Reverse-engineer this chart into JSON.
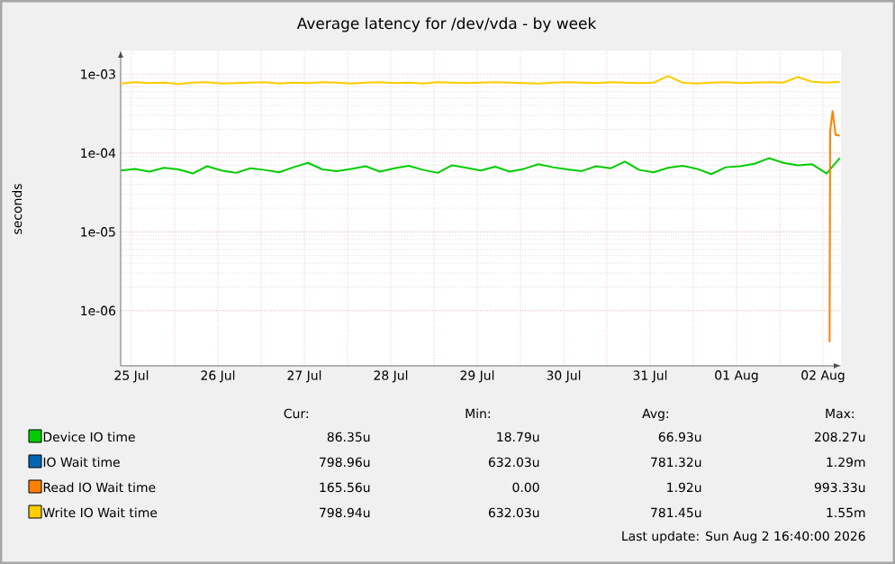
{
  "chart_data": {
    "type": "line",
    "title": "Average latency for /dev/vda - by week",
    "ylabel": "seconds",
    "log": "y",
    "grid": true,
    "legend": "bottom",
    "marker": "none",
    "xlim": [
      "2026-07-25T09:00",
      "2026-08-02T17:00"
    ],
    "ylim": [
      2e-07,
      0.002
    ],
    "yticks": [
      {
        "value": 1e-06,
        "label": "1e-06"
      },
      {
        "value": 1e-05,
        "label": "1e-05"
      },
      {
        "value": 0.0001,
        "label": "1e-04"
      },
      {
        "value": 0.001,
        "label": "1e-03"
      }
    ],
    "xticks": [
      {
        "value": "2026-07-25T12:00",
        "label": "25 Jul"
      },
      {
        "value": "2026-07-26T00:00",
        "label": null
      },
      {
        "value": "2026-07-26T12:00",
        "label": "26 Jul"
      },
      {
        "value": "2026-07-27T00:00",
        "label": null
      },
      {
        "value": "2026-07-27T12:00",
        "label": "27 Jul"
      },
      {
        "value": "2026-07-28T00:00",
        "label": null
      },
      {
        "value": "2026-07-28T12:00",
        "label": "28 Jul"
      },
      {
        "value": "2026-07-29T00:00",
        "label": null
      },
      {
        "value": "2026-07-29T12:00",
        "label": "29 Jul"
      },
      {
        "value": "2026-07-30T00:00",
        "label": null
      },
      {
        "value": "2026-07-30T12:00",
        "label": "30 Jul"
      },
      {
        "value": "2026-07-31T00:00",
        "label": null
      },
      {
        "value": "2026-07-31T12:00",
        "label": "31 Jul"
      },
      {
        "value": "2026-08-01T00:00",
        "label": null
      },
      {
        "value": "2026-08-01T12:00",
        "label": "01 Aug"
      },
      {
        "value": "2026-08-02T00:00",
        "label": null
      },
      {
        "value": "2026-08-02T12:00",
        "label": "02 Aug"
      }
    ],
    "x": [
      "2026-07-25T09:00",
      "2026-07-25T13:00",
      "2026-07-25T17:00",
      "2026-07-25T21:00",
      "2026-07-26T01:00",
      "2026-07-26T05:00",
      "2026-07-26T09:00",
      "2026-07-26T13:00",
      "2026-07-26T17:00",
      "2026-07-26T21:00",
      "2026-07-27T01:00",
      "2026-07-27T05:00",
      "2026-07-27T09:00",
      "2026-07-27T13:00",
      "2026-07-27T17:00",
      "2026-07-27T21:00",
      "2026-07-28T01:00",
      "2026-07-28T05:00",
      "2026-07-28T09:00",
      "2026-07-28T13:00",
      "2026-07-28T17:00",
      "2026-07-28T21:00",
      "2026-07-29T01:00",
      "2026-07-29T05:00",
      "2026-07-29T09:00",
      "2026-07-29T13:00",
      "2026-07-29T17:00",
      "2026-07-29T21:00",
      "2026-07-30T01:00",
      "2026-07-30T05:00",
      "2026-07-30T09:00",
      "2026-07-30T13:00",
      "2026-07-30T17:00",
      "2026-07-30T21:00",
      "2026-07-31T01:00",
      "2026-07-31T05:00",
      "2026-07-31T09:00",
      "2026-07-31T13:00",
      "2026-07-31T17:00",
      "2026-07-31T21:00",
      "2026-08-01T01:00",
      "2026-08-01T05:00",
      "2026-08-01T09:00",
      "2026-08-01T13:00",
      "2026-08-01T17:00",
      "2026-08-01T21:00",
      "2026-08-02T01:00",
      "2026-08-02T05:00",
      "2026-08-02T09:00",
      "2026-08-02T13:00",
      "2026-08-02T16:40"
    ],
    "series": [
      {
        "name": "Device IO time",
        "color": "#00cc00",
        "values": [
          6e-05,
          6.3e-05,
          5.8e-05,
          6.5e-05,
          6.2e-05,
          5.5e-05,
          6.8e-05,
          6e-05,
          5.6e-05,
          6.4e-05,
          6.1e-05,
          5.7e-05,
          6.6e-05,
          7.5e-05,
          6.2e-05,
          5.9e-05,
          6.3e-05,
          6.8e-05,
          5.8e-05,
          6.4e-05,
          6.9e-05,
          6.1e-05,
          5.6e-05,
          7e-05,
          6.5e-05,
          6e-05,
          6.7e-05,
          5.8e-05,
          6.3e-05,
          7.2e-05,
          6.6e-05,
          6.2e-05,
          5.9e-05,
          6.8e-05,
          6.4e-05,
          7.8e-05,
          6.1e-05,
          5.7e-05,
          6.5e-05,
          6.9e-05,
          6.3e-05,
          5.4e-05,
          6.6e-05,
          6.8e-05,
          7.3e-05,
          8.6e-05,
          7.5e-05,
          7e-05,
          7.2e-05,
          5.5e-05,
          8.635e-05
        ]
      },
      {
        "name": "IO Wait time",
        "color": "#0066b3",
        "values": [
          null,
          null,
          null,
          null,
          null,
          null,
          null,
          null,
          null,
          null,
          null,
          null,
          null,
          null,
          null,
          null,
          null,
          null,
          null,
          null,
          null,
          null,
          null,
          null,
          null,
          null,
          null,
          null,
          null,
          null,
          null,
          null,
          null,
          null,
          null,
          null,
          null,
          null,
          null,
          null,
          null,
          null,
          null,
          null,
          null,
          null,
          null,
          null,
          null,
          null,
          null
        ]
      },
      {
        "name": "Read IO Wait time",
        "color": "#ff8000",
        "x": [
          "2026-08-02T13:50",
          "2026-08-02T14:00",
          "2026-08-02T14:40",
          "2026-08-02T15:30",
          "2026-08-02T16:40"
        ],
        "values": [
          4e-07,
          0.00019,
          0.00034,
          0.00017,
          0.000166
        ]
      },
      {
        "name": "Write IO Wait time",
        "color": "#ffcc00",
        "values": [
          0.00076,
          0.00079,
          0.00077,
          0.00078,
          0.00075,
          0.00078,
          0.00079,
          0.00076,
          0.00077,
          0.00078,
          0.00079,
          0.00076,
          0.00078,
          0.00077,
          0.00079,
          0.00078,
          0.00076,
          0.00078,
          0.00079,
          0.00077,
          0.00078,
          0.00076,
          0.00079,
          0.00078,
          0.00077,
          0.00078,
          0.00079,
          0.00078,
          0.00077,
          0.00076,
          0.00078,
          0.00079,
          0.00078,
          0.00077,
          0.00079,
          0.00078,
          0.00077,
          0.00078,
          0.00095,
          0.00078,
          0.00076,
          0.00078,
          0.00079,
          0.00077,
          0.00078,
          0.00079,
          0.00078,
          0.00092,
          0.0008,
          0.00078,
          0.000799
        ]
      }
    ],
    "annotations": [
      "Cur:",
      "Min:",
      "Avg:",
      "Max:",
      "86.35u",
      "18.79u",
      "66.93u",
      "208.27u",
      "798.96u",
      "632.03u",
      "781.32u",
      "1.29m",
      "165.56u",
      "0.00",
      "1.92u",
      "993.33u",
      "798.94u",
      "632.03u",
      "781.45u",
      "1.55m",
      "Last update: Sun Aug  2 16:40:00 2026"
    ]
  }
}
